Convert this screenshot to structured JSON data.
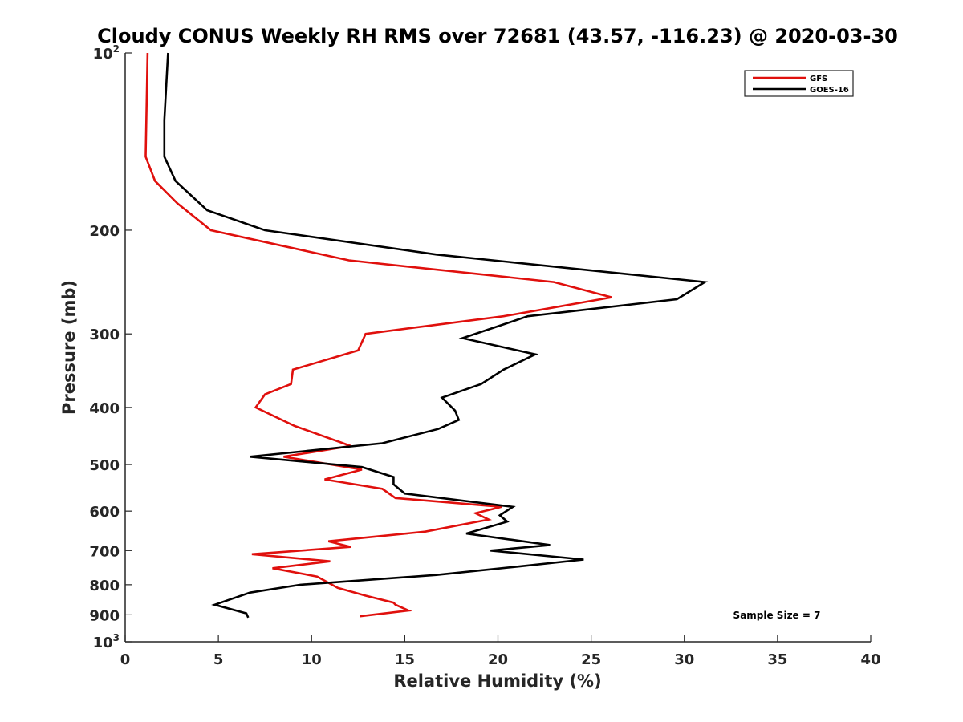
{
  "chart_data": {
    "type": "line",
    "title": "Cloudy CONUS Weekly RH RMS over 72681 (43.57, -116.23) @ 2020-03-30",
    "xlabel": "Relative Humidity (%)",
    "ylabel": "Pressure (mb)",
    "xlim": [
      0,
      40
    ],
    "ylim": [
      100,
      1000
    ],
    "y_scale": "log",
    "y_reversed": true,
    "x_ticks": [
      0,
      5,
      10,
      15,
      20,
      25,
      30,
      35,
      40
    ],
    "y_ticks": [
      {
        "value": 100,
        "base": "10",
        "exp": "2"
      },
      {
        "value": 200,
        "label": "200"
      },
      {
        "value": 300,
        "label": "300"
      },
      {
        "value": 400,
        "label": "400"
      },
      {
        "value": 500,
        "label": "500"
      },
      {
        "value": 600,
        "label": "600"
      },
      {
        "value": 700,
        "label": "700"
      },
      {
        "value": 800,
        "label": "800"
      },
      {
        "value": 900,
        "label": "900"
      },
      {
        "value": 1000,
        "base": "10",
        "exp": "3"
      }
    ],
    "grid": false,
    "legend_position": "top-right",
    "annotation": "Sample Size = 7",
    "series": [
      {
        "name": "GFS",
        "color": "#e0100d",
        "points": [
          [
            1.2,
            100
          ],
          [
            1.1,
            150
          ],
          [
            1.6,
            165
          ],
          [
            2.8,
            180
          ],
          [
            4.6,
            200
          ],
          [
            12.0,
            225
          ],
          [
            23.0,
            245
          ],
          [
            26.1,
            260
          ],
          [
            20.3,
            280
          ],
          [
            12.9,
            300
          ],
          [
            12.5,
            320
          ],
          [
            9.0,
            345
          ],
          [
            8.9,
            365
          ],
          [
            7.5,
            380
          ],
          [
            7.0,
            400
          ],
          [
            9.1,
            430
          ],
          [
            12.1,
            465
          ],
          [
            8.5,
            485
          ],
          [
            12.7,
            510
          ],
          [
            10.7,
            530
          ],
          [
            13.8,
            550
          ],
          [
            14.5,
            570
          ],
          [
            20.2,
            590
          ],
          [
            18.8,
            605
          ],
          [
            19.5,
            620
          ],
          [
            16.1,
            650
          ],
          [
            10.9,
            675
          ],
          [
            12.1,
            690
          ],
          [
            6.8,
            710
          ],
          [
            11.0,
            730
          ],
          [
            7.9,
            750
          ],
          [
            10.3,
            775
          ],
          [
            11.4,
            810
          ],
          [
            12.9,
            835
          ],
          [
            14.4,
            858
          ],
          [
            14.5,
            865
          ],
          [
            15.2,
            885
          ],
          [
            12.6,
            905
          ]
        ]
      },
      {
        "name": "GOES-16",
        "color": "#000000",
        "points": [
          [
            2.3,
            100
          ],
          [
            2.1,
            130
          ],
          [
            2.1,
            150
          ],
          [
            2.7,
            165
          ],
          [
            4.4,
            185
          ],
          [
            7.5,
            200
          ],
          [
            16.7,
            220
          ],
          [
            31.1,
            245
          ],
          [
            29.6,
            262
          ],
          [
            21.6,
            280
          ],
          [
            18.1,
            305
          ],
          [
            22.0,
            325
          ],
          [
            20.3,
            345
          ],
          [
            19.1,
            365
          ],
          [
            17.0,
            385
          ],
          [
            17.7,
            405
          ],
          [
            17.9,
            420
          ],
          [
            16.8,
            435
          ],
          [
            13.8,
            460
          ],
          [
            6.7,
            485
          ],
          [
            12.7,
            505
          ],
          [
            14.4,
            525
          ],
          [
            14.4,
            540
          ],
          [
            15.0,
            560
          ],
          [
            20.8,
            590
          ],
          [
            20.1,
            610
          ],
          [
            20.5,
            625
          ],
          [
            18.3,
            655
          ],
          [
            22.8,
            685
          ],
          [
            19.6,
            700
          ],
          [
            24.6,
            725
          ],
          [
            21.1,
            745
          ],
          [
            16.7,
            770
          ],
          [
            9.4,
            800
          ],
          [
            6.7,
            825
          ],
          [
            4.8,
            865
          ],
          [
            6.5,
            895
          ],
          [
            6.6,
            910
          ]
        ]
      }
    ]
  }
}
